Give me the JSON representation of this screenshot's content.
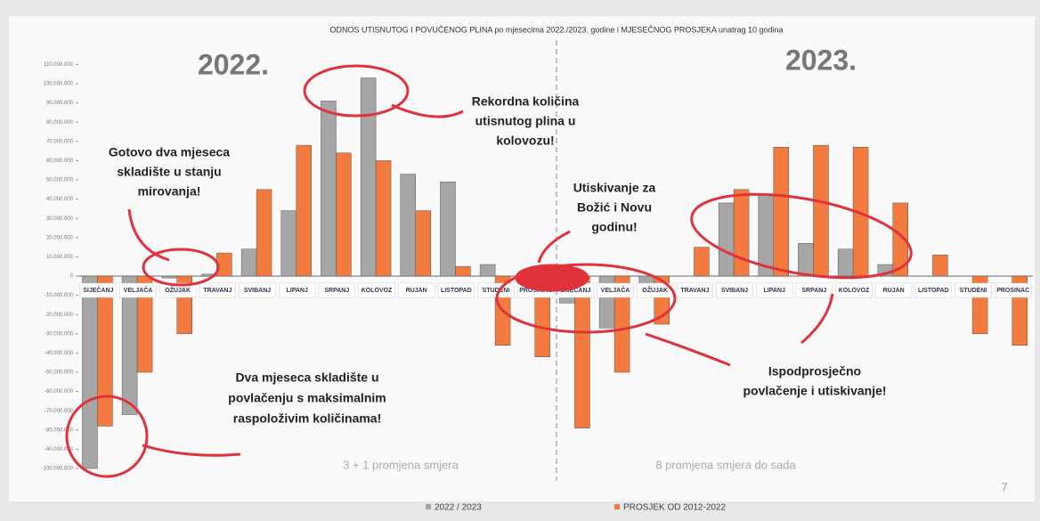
{
  "chart_data": {
    "type": "bar",
    "title": "ODNOS UTISNUTOG I POVUČENOG PLINA po mjesecima 2022./2023. godine i MJESEČNOG PROSJEKA unatrag 10 godina",
    "period_labels": [
      "2022.",
      "2023."
    ],
    "categories": [
      "SIJEČANJ",
      "VELJAČA",
      "OŽUJAK",
      "TRAVANJ",
      "SVIBANJ",
      "LIPANJ",
      "SRPANJ",
      "KOLOVOZ",
      "RUJAN",
      "LISTOPAD",
      "STUDENI",
      "PROSINAC",
      "SIJEČANJ",
      "VELJAČA",
      "OŽUJAK",
      "TRAVANJ",
      "SVIBANJ",
      "LIPANJ",
      "SRPANJ",
      "KOLOVOZ",
      "RUJAN",
      "LISTOPAD",
      "STUDENI",
      "PROSINAC"
    ],
    "series": [
      {
        "name": "2022 / 2023",
        "color": "#a6a6a6",
        "values": [
          -100000000,
          -72000000,
          -1000000,
          1000000,
          14000000,
          34000000,
          91000000,
          103000000,
          53000000,
          49000000,
          6000000,
          -3000000,
          -14000000,
          -27000000,
          -4000000,
          0,
          38000000,
          42000000,
          17000000,
          14000000,
          6000000,
          null,
          null,
          null
        ]
      },
      {
        "name": "PROSJEK OD 2012-2022",
        "color": "#f47b3f",
        "values": [
          -78000000,
          -50000000,
          -30000000,
          12000000,
          45000000,
          68000000,
          64000000,
          60000000,
          34000000,
          5000000,
          -36000000,
          -42000000,
          -79000000,
          -50000000,
          -25000000,
          15000000,
          45000000,
          67000000,
          68000000,
          67000000,
          38000000,
          11000000,
          -30000000,
          -36000000
        ]
      }
    ],
    "ylim": [
      -105000000,
      115000000
    ],
    "yticks": [
      {
        "value": 110000000,
        "label": "110.000.000"
      },
      {
        "value": 100000000,
        "label": "100.000.000"
      },
      {
        "value": 90000000,
        "label": "90.000.000"
      },
      {
        "value": 80000000,
        "label": "80.000.000"
      },
      {
        "value": 70000000,
        "label": "70.000.000"
      },
      {
        "value": 60000000,
        "label": "60.000.000"
      },
      {
        "value": 50000000,
        "label": "50.000.000"
      },
      {
        "value": 40000000,
        "label": "40.000.000"
      },
      {
        "value": 30000000,
        "label": "30.000.000"
      },
      {
        "value": 20000000,
        "label": "20.000.000"
      },
      {
        "value": 10000000,
        "label": "10.000.000"
      },
      0,
      {
        "value": -10000000,
        "label": "-10.000.000"
      },
      {
        "value": -20000000,
        "label": "-20.000.000"
      },
      {
        "value": -30000000,
        "label": "-30.000.000"
      },
      {
        "value": -40000000,
        "label": "-40.000.000"
      },
      {
        "value": -50000000,
        "label": "-50.000.000"
      },
      {
        "value": -60000000,
        "label": "-60.000.000"
      },
      {
        "value": -70000000,
        "label": "-70.000.000"
      },
      {
        "value": -80000000,
        "label": "-80.000.000"
      },
      {
        "value": -90000000,
        "label": "-90.000.000"
      },
      {
        "value": -100000000,
        "label": "-100.000.000"
      }
    ],
    "annotations": [
      {
        "lines": [
          "Gotovo dva mjeseca",
          "skladište u stanju",
          "mirovanja!"
        ]
      },
      {
        "lines": [
          "Rekordna količina",
          "utisnutog plina u",
          "kolovozu!"
        ]
      },
      {
        "lines": [
          "Utiskivanje za",
          "Božić i Novu",
          "godinu!"
        ]
      },
      {
        "lines": [
          "Dva mjeseca skladište u",
          "povlačenju s maksimalnim",
          "raspoloživim količinama!"
        ]
      },
      {
        "lines": [
          "Ispodprosječno",
          "povlačenje i utiskivanje!"
        ]
      }
    ],
    "notes": [
      "3 + 1 promjena smjera",
      "8 promjena smjera do sada"
    ],
    "page_number": "7"
  }
}
